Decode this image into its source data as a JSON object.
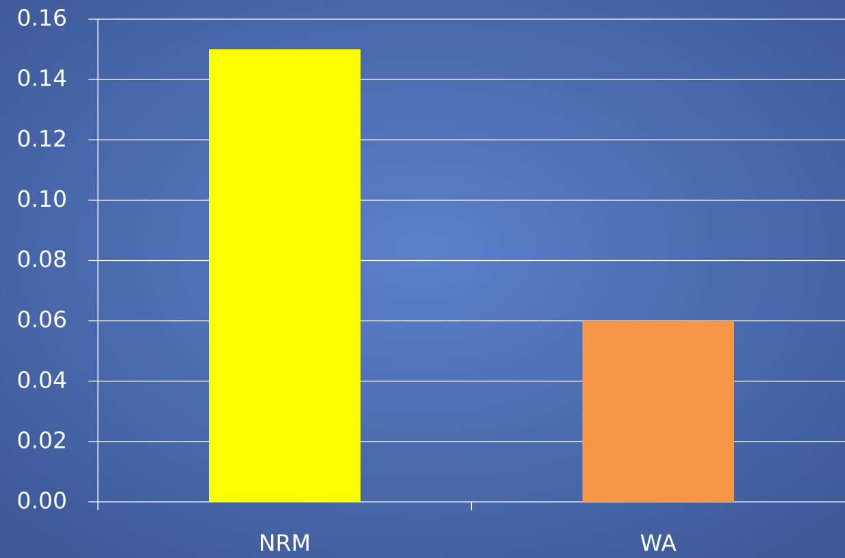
{
  "chart_data": {
    "type": "bar",
    "categories": [
      "NRM",
      "WA"
    ],
    "values": [
      0.15,
      0.06
    ],
    "colors": [
      "#ffff00",
      "#f79646"
    ],
    "ylim": [
      0,
      0.16
    ],
    "yticks": [
      {
        "value": 0,
        "label": "0.00"
      },
      0.02,
      0.04,
      0.06,
      0.08,
      {
        "value": 0.1,
        "label": "0.10"
      },
      0.12,
      0.14,
      0.16
    ],
    "grid": true
  }
}
